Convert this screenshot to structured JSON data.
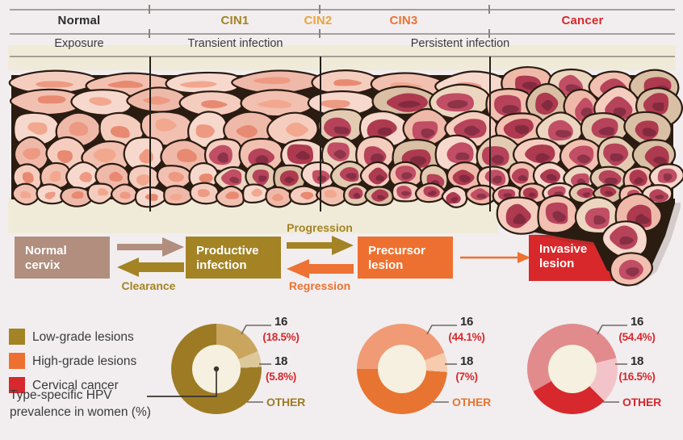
{
  "header": {
    "stages": [
      {
        "label": "Normal",
        "color": "#2d2d2d"
      },
      {
        "label": "CIN1",
        "color": "#a38324"
      },
      {
        "label": "CIN2",
        "color": "#e9a43d"
      },
      {
        "label": "CIN3",
        "color": "#ed7233"
      },
      {
        "label": "Cancer",
        "color": "#d7282d"
      }
    ],
    "phases": [
      {
        "label": "Exposure"
      },
      {
        "label": "Transient infection"
      },
      {
        "label": "Persistent infection"
      }
    ]
  },
  "flow": {
    "boxes": [
      {
        "label": "Normal cervix",
        "color": "#b18e7e"
      },
      {
        "label": "Productive infection",
        "color": "#a38324"
      },
      {
        "label": "Precursor lesion",
        "color": "#ee7030"
      },
      {
        "label": "Invasive lesion",
        "color": "#d8282b"
      }
    ],
    "labels": {
      "progression": {
        "text": "Progression",
        "color": "#a38324"
      },
      "regression": {
        "text": "Regression",
        "color": "#ed7233"
      },
      "clearance": {
        "text": "Clearance",
        "color": "#a38324"
      }
    }
  },
  "legend": {
    "items": [
      {
        "label": "Low-grade lesions",
        "color": "#a38324"
      },
      {
        "label": "High-grade lesions",
        "color": "#ee7030"
      },
      {
        "label": "Cervical cancer",
        "color": "#d7282d"
      }
    ],
    "note": "Type-specific HPV prevalence in women (%)"
  },
  "chart_data": [
    {
      "type": "pie",
      "name": "hpv-prevalence-low-grade-lesions",
      "labels": [
        "16",
        "18",
        "OTHER"
      ],
      "values": [
        18.5,
        5.8,
        75.7
      ],
      "colors": [
        "#c9a55e",
        "#ddc89b",
        "#9c7b24"
      ],
      "hole_color": "#f5f0df",
      "start_deg": 0,
      "legend_position": "callouts-right",
      "callouts": {
        "n16": "16",
        "p16": "(18.5%)",
        "n18": "18",
        "p18": "(5.8%)",
        "other": "OTHER"
      }
    },
    {
      "type": "pie",
      "name": "hpv-prevalence-high-grade-lesions",
      "labels": [
        "16",
        "18",
        "OTHER"
      ],
      "values": [
        44.1,
        7,
        48.9
      ],
      "colors": [
        "#f09b76",
        "#f6cbae",
        "#e87431"
      ],
      "hole_color": "#f5f0df",
      "start_deg": -90,
      "legend_position": "callouts-right",
      "callouts": {
        "n16": "16",
        "p16": "(44.1%)",
        "n18": "18",
        "p18": "(7%)",
        "other": "OTHER"
      }
    },
    {
      "type": "pie",
      "name": "hpv-prevalence-cervical-cancer",
      "labels": [
        "16",
        "18",
        "OTHER"
      ],
      "values": [
        54.4,
        16.5,
        29.1
      ],
      "colors": [
        "#e18b8d",
        "#f2c4c9",
        "#d7282d"
      ],
      "hole_color": "#f5f0df",
      "start_deg": -120,
      "legend_position": "callouts-right",
      "callouts": {
        "n16": "16",
        "p16": "(54.4%)",
        "n18": "18",
        "p18": "(16.5%)",
        "other": "OTHER"
      }
    }
  ],
  "tissue_colors": {
    "cell_pink": "#f4c8ba",
    "cell_pale": "#f7d7cb",
    "cell_tan": "#e3cbb2",
    "nucleus_normal": "#ec9781",
    "nucleus_abnormal": "#b6435a",
    "outline": "#2b1c12",
    "band_beige": "#f0ebd8"
  }
}
